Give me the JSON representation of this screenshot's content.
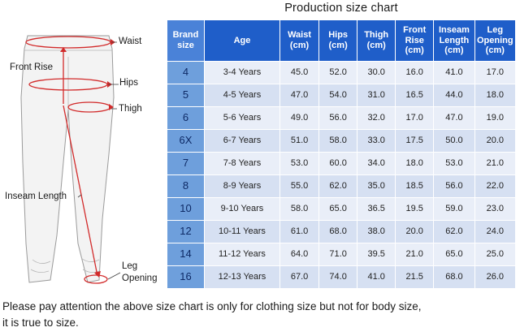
{
  "title": "Production size chart",
  "diagram": {
    "waist": "Waist",
    "front_rise": "Front Rise",
    "hips": "Hips",
    "thigh": "Thigh",
    "inseam_length": "Inseam Length",
    "leg_opening_line1": "Leg",
    "leg_opening_line2": "Opening"
  },
  "table": {
    "headers": [
      {
        "l1": "Brand",
        "l2": "size"
      },
      {
        "l1": "Age",
        "l2": ""
      },
      {
        "l1": "Waist",
        "l2": "(cm)"
      },
      {
        "l1": "Hips",
        "l2": "(cm)"
      },
      {
        "l1": "Thigh",
        "l2": "(cm)"
      },
      {
        "l1": "Front",
        "l2": "Rise",
        "l3": "(cm)"
      },
      {
        "l1": "Inseam",
        "l2": "Length",
        "l3": "(cm)"
      },
      {
        "l1": "Leg",
        "l2": "Opening",
        "l3": "(cm)"
      }
    ],
    "rows": [
      [
        "4",
        "3-4 Years",
        "45.0",
        "52.0",
        "30.0",
        "16.0",
        "41.0",
        "17.0"
      ],
      [
        "5",
        "4-5 Years",
        "47.0",
        "54.0",
        "31.0",
        "16.5",
        "44.0",
        "18.0"
      ],
      [
        "6",
        "5-6 Years",
        "49.0",
        "56.0",
        "32.0",
        "17.0",
        "47.0",
        "19.0"
      ],
      [
        "6X",
        "6-7 Years",
        "51.0",
        "58.0",
        "33.0",
        "17.5",
        "50.0",
        "20.0"
      ],
      [
        "7",
        "7-8 Years",
        "53.0",
        "60.0",
        "34.0",
        "18.0",
        "53.0",
        "21.0"
      ],
      [
        "8",
        "8-9 Years",
        "55.0",
        "62.0",
        "35.0",
        "18.5",
        "56.0",
        "22.0"
      ],
      [
        "10",
        "9-10 Years",
        "58.0",
        "65.0",
        "36.5",
        "19.5",
        "59.0",
        "23.0"
      ],
      [
        "12",
        "10-11 Years",
        "61.0",
        "68.0",
        "38.0",
        "20.0",
        "62.0",
        "24.0"
      ],
      [
        "14",
        "11-12 Years",
        "64.0",
        "71.0",
        "39.5",
        "21.0",
        "65.0",
        "25.0"
      ],
      [
        "16",
        "12-13 Years",
        "67.0",
        "74.0",
        "41.0",
        "21.5",
        "68.0",
        "26.0"
      ]
    ]
  },
  "footer": {
    "line1": "Please pay attention the above size chart is only for clothing size but not for body size,",
    "line2": "it is true to size."
  },
  "colors": {
    "header_blue": "#1f5ec9",
    "brand_cell_blue": "#6e9fdc",
    "measure_red": "#d22b2b"
  },
  "icons": [
    "pants-outline-illustration",
    "measurement-arrow"
  ]
}
